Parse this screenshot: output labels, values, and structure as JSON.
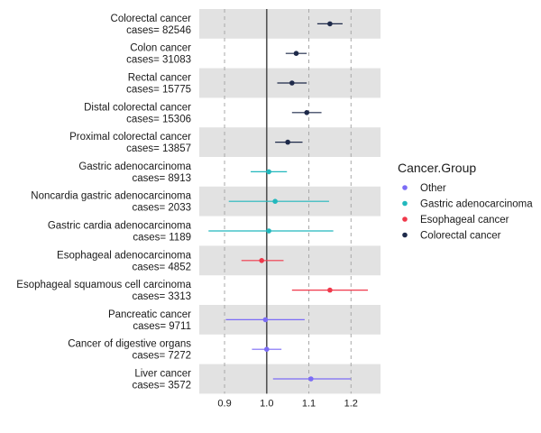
{
  "chart_data": {
    "type": "forest",
    "xlim": [
      0.84,
      1.27
    ],
    "xticks": [
      0.9,
      1.0,
      1.1,
      1.2
    ],
    "xtick_labels": [
      "0.9",
      "1.0",
      "1.1",
      "1.2"
    ],
    "reference_line": 1.0,
    "dashed_gridlines": [
      0.9,
      1.0,
      1.1,
      1.2
    ],
    "legend": {
      "title": "Cancer.Group",
      "placement": "right",
      "items": [
        {
          "name": "Other",
          "color": "#7b6cf6"
        },
        {
          "name": "Gastric adenocarcinoma",
          "color": "#22b8bd"
        },
        {
          "name": "Esophageal cancer",
          "color": "#f0384a"
        },
        {
          "name": "Colorectal cancer",
          "color": "#1e2a4a"
        }
      ]
    },
    "rows": [
      {
        "name": "Colorectal cancer",
        "cases": "cases= 82546",
        "group": "Colorectal cancer",
        "estimate": 1.15,
        "lower": 1.12,
        "upper": 1.18
      },
      {
        "name": "Colon cancer",
        "cases": "cases= 31083",
        "group": "Colorectal cancer",
        "estimate": 1.07,
        "lower": 1.045,
        "upper": 1.095
      },
      {
        "name": "Rectal cancer",
        "cases": "cases= 15775",
        "group": "Colorectal cancer",
        "estimate": 1.06,
        "lower": 1.025,
        "upper": 1.095
      },
      {
        "name": "Distal colorectal cancer",
        "cases": "cases= 15306",
        "group": "Colorectal cancer",
        "estimate": 1.095,
        "lower": 1.06,
        "upper": 1.13
      },
      {
        "name": "Proximal colorectal cancer",
        "cases": "cases= 13857",
        "group": "Colorectal cancer",
        "estimate": 1.05,
        "lower": 1.02,
        "upper": 1.085
      },
      {
        "name": "Gastric adenocarcinoma",
        "cases": "cases= 8913",
        "group": "Gastric adenocarcinoma",
        "estimate": 1.005,
        "lower": 0.962,
        "upper": 1.048
      },
      {
        "name": "Noncardia gastric adenocarcinoma",
        "cases": "cases= 2033",
        "group": "Gastric adenocarcinoma",
        "estimate": 1.02,
        "lower": 0.91,
        "upper": 1.148
      },
      {
        "name": "Gastric cardia adenocarcinoma",
        "cases": "cases= 1189",
        "group": "Gastric adenocarcinoma",
        "estimate": 1.005,
        "lower": 0.862,
        "upper": 1.158
      },
      {
        "name": "Esophageal adenocarcinoma",
        "cases": "cases= 4852",
        "group": "Esophageal cancer",
        "estimate": 0.988,
        "lower": 0.94,
        "upper": 1.04
      },
      {
        "name": "Esophageal squamous cell carcinoma",
        "cases": "cases= 3313",
        "group": "Esophageal cancer",
        "estimate": 1.15,
        "lower": 1.06,
        "upper": 1.24
      },
      {
        "name": "Pancreatic cancer",
        "cases": "cases= 9711",
        "group": "Other",
        "estimate": 0.997,
        "lower": 0.903,
        "upper": 1.09
      },
      {
        "name": "Cancer of digestive organs",
        "cases": "cases= 7272",
        "group": "Other",
        "estimate": 1.0,
        "lower": 0.965,
        "upper": 1.035
      },
      {
        "name": "Liver cancer",
        "cases": "cases= 3572",
        "group": "Other",
        "estimate": 1.105,
        "lower": 1.015,
        "upper": 1.2
      }
    ]
  }
}
